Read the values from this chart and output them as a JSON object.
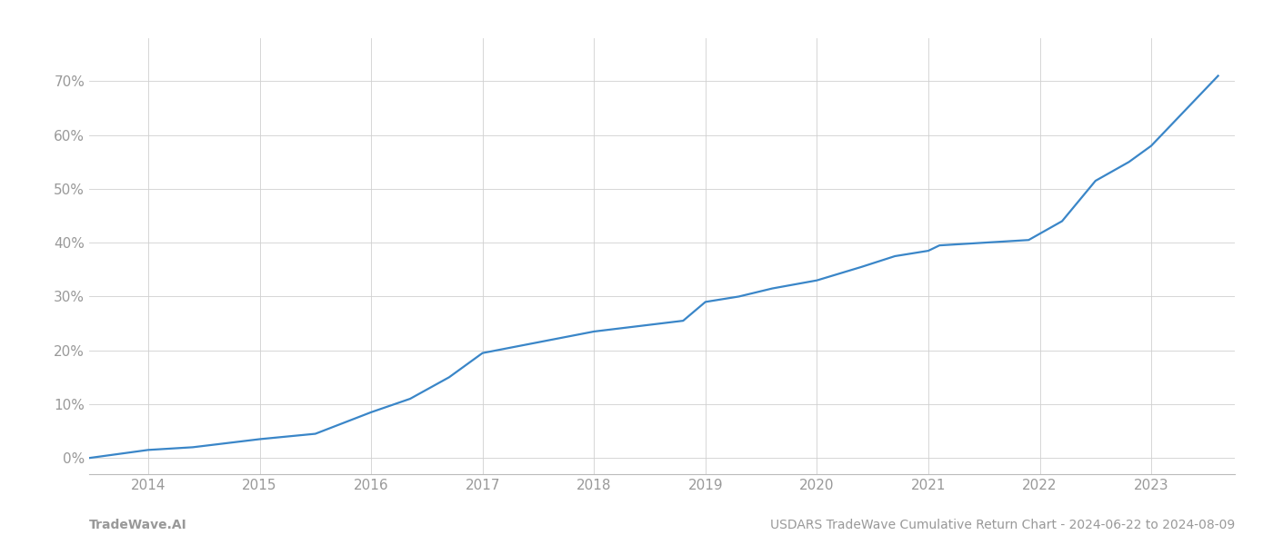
{
  "title": "USDARS TradeWave Cumulative Return Chart - 2024-06-22 to 2024-08-09",
  "footer_left": "TradeWave.AI",
  "footer_right": "USDARS TradeWave Cumulative Return Chart - 2024-06-22 to 2024-08-09",
  "line_color": "#3a86c8",
  "background_color": "#ffffff",
  "grid_color": "#d0d0d0",
  "x_years": [
    2013.47,
    2014.0,
    2014.4,
    2015.0,
    2015.5,
    2016.0,
    2016.35,
    2016.7,
    2017.0,
    2017.5,
    2018.0,
    2018.4,
    2018.8,
    2019.0,
    2019.3,
    2019.6,
    2020.0,
    2020.4,
    2020.7,
    2021.0,
    2021.1,
    2021.5,
    2021.9,
    2022.2,
    2022.5,
    2022.8,
    2023.0,
    2023.6
  ],
  "y_values": [
    0.0,
    1.5,
    2.0,
    3.5,
    4.5,
    8.5,
    11.0,
    15.0,
    19.5,
    21.5,
    23.5,
    24.5,
    25.5,
    29.0,
    30.0,
    31.5,
    33.0,
    35.5,
    37.5,
    38.5,
    39.5,
    40.0,
    40.5,
    44.0,
    51.5,
    55.0,
    58.0,
    71.0
  ],
  "xlim": [
    2013.47,
    2023.75
  ],
  "ylim": [
    -3,
    78
  ],
  "yticks": [
    0,
    10,
    20,
    30,
    40,
    50,
    60,
    70
  ],
  "xticks": [
    2014,
    2015,
    2016,
    2017,
    2018,
    2019,
    2020,
    2021,
    2022,
    2023
  ],
  "axis_label_color": "#999999",
  "axis_tick_fontsize": 11,
  "footer_fontsize": 10,
  "line_width": 1.6
}
